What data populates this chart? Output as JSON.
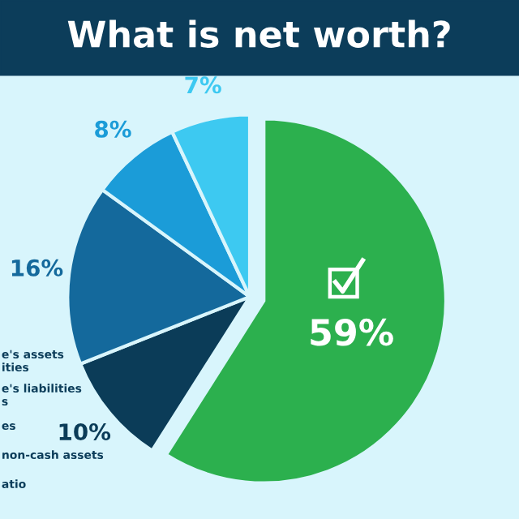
{
  "chart_data": {
    "type": "pie",
    "title": "What is net worth?",
    "categories": [
      null,
      null,
      null,
      null,
      null
    ],
    "values": [
      59,
      10,
      16,
      8,
      7
    ],
    "colors": [
      "#2cb04e",
      "#0b3c58",
      "#14699c",
      "#1b9cd8",
      "#3dc9f1"
    ],
    "value_labels": [
      "59%",
      "10%",
      "16%",
      "8%",
      "7%"
    ],
    "annotations": [
      "e's assets",
      "ities",
      "e's liabilities",
      "s",
      "es",
      "non-cash assets",
      "atio"
    ]
  }
}
